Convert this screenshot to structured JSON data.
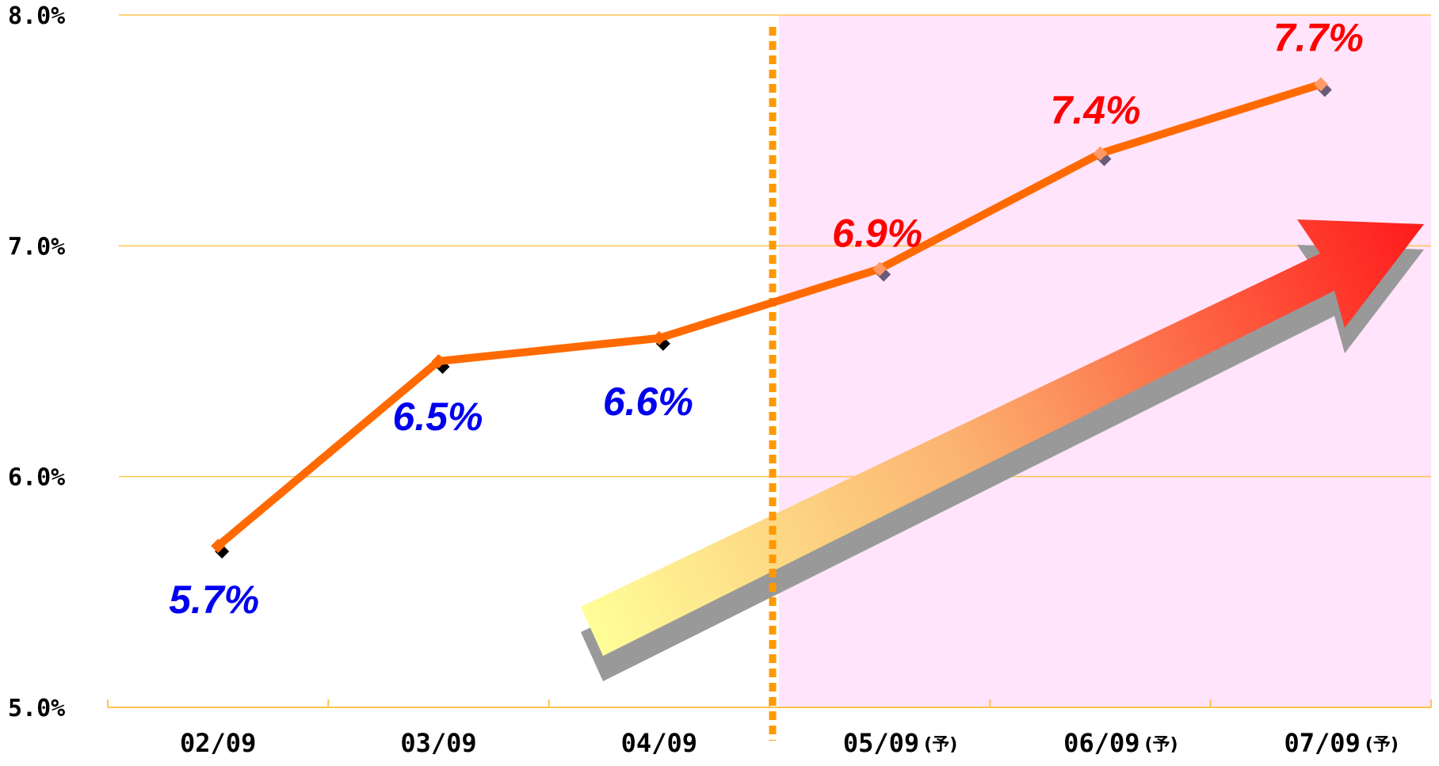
{
  "chart_data": {
    "type": "line",
    "categories": [
      "02/09",
      "03/09",
      "04/09",
      "05/09",
      "06/09",
      "07/09"
    ],
    "category_notes": [
      "",
      "",
      "",
      "(予)",
      "(予)",
      "(予)"
    ],
    "values": [
      5.7,
      6.5,
      6.6,
      6.9,
      7.4,
      7.7
    ],
    "value_labels": [
      "5.7%",
      "6.5%",
      "6.6%",
      "6.9%",
      "7.4%",
      "7.7%"
    ],
    "y_ticks": [
      "5.0%",
      "6.0%",
      "7.0%",
      "8.0%"
    ],
    "y_tick_values": [
      5.0,
      6.0,
      7.0,
      8.0
    ],
    "ylim": [
      5.0,
      8.0
    ],
    "grid": true,
    "forecast_from_index": 3,
    "title": "",
    "xlabel": "",
    "ylabel": "",
    "colors": {
      "line": "#ff6a00",
      "actual_label": "#0000ee",
      "forecast_label": "#ff0000",
      "forecast_band": "#ffe4fb",
      "gridline": "#ffc34d",
      "divider": "#ff9900",
      "arrow_start": "#ffff99",
      "arrow_end": "#ff1a1a",
      "arrow_shadow": "#999999"
    }
  }
}
